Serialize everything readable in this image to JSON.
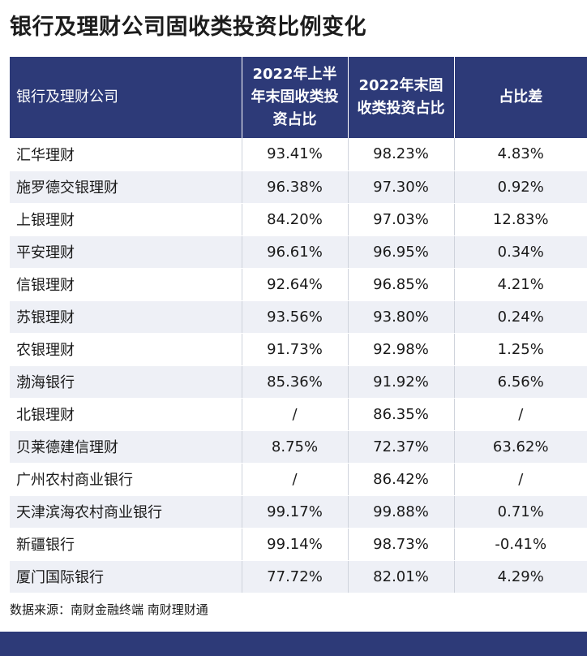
{
  "title": "银行及理财公司固收类投资比例变化",
  "table": {
    "headers": [
      "银行及理财公司",
      "2022年上半年末固收类投资占比",
      "2022年末固收类投资占比",
      "占比差"
    ],
    "rows": [
      [
        "汇华理财",
        "93.41%",
        "98.23%",
        "4.83%"
      ],
      [
        "施罗德交银理财",
        "96.38%",
        "97.30%",
        "0.92%"
      ],
      [
        "上银理财",
        "84.20%",
        "97.03%",
        "12.83%"
      ],
      [
        "平安理财",
        "96.61%",
        "96.95%",
        "0.34%"
      ],
      [
        "信银理财",
        "92.64%",
        "96.85%",
        "4.21%"
      ],
      [
        "苏银理财",
        "93.56%",
        "93.80%",
        "0.24%"
      ],
      [
        "农银理财",
        "91.73%",
        "92.98%",
        "1.25%"
      ],
      [
        "渤海银行",
        "85.36%",
        "91.92%",
        "6.56%"
      ],
      [
        "北银理财",
        "/",
        "86.35%",
        "/"
      ],
      [
        "贝莱德建信理财",
        "8.75%",
        "72.37%",
        "63.62%"
      ],
      [
        "广州农村商业银行",
        "/",
        "86.42%",
        "/"
      ],
      [
        "天津滨海农村商业银行",
        "99.17%",
        "99.88%",
        "0.71%"
      ],
      [
        "新疆银行",
        "99.14%",
        "98.73%",
        "-0.41%"
      ],
      [
        "厦门国际银行",
        "77.72%",
        "82.01%",
        "4.29%"
      ]
    ]
  },
  "source": "数据来源：南财金融终端 南财理财通",
  "colors": {
    "header_bg": "#2d3a78",
    "stripe": "#eef0f6"
  }
}
